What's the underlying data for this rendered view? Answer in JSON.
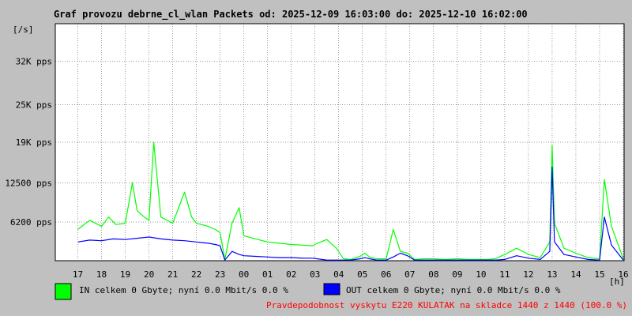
{
  "chart_data": {
    "type": "line",
    "title": "Graf provozu debrne_cl_wlan Packets od: 2025-12-09 16:03:00 do: 2025-12-10 16:02:00",
    "ylabel": "[/s]",
    "xlabel": "[h]",
    "x_start": "16:03",
    "x_end": "16:02",
    "x_ticks": [
      "17",
      "18",
      "19",
      "20",
      "21",
      "22",
      "23",
      "00",
      "01",
      "02",
      "03",
      "04",
      "05",
      "06",
      "07",
      "08",
      "09",
      "10",
      "11",
      "12",
      "13",
      "14",
      "15",
      "16"
    ],
    "y_ticks": [
      {
        "value": 6200,
        "label": "6200 pps"
      },
      {
        "value": 12500,
        "label": "12500 pps"
      },
      {
        "value": 19000,
        "label": "19K pps"
      },
      {
        "value": 25000,
        "label": "25K pps"
      },
      {
        "value": 32000,
        "label": "32K pps"
      }
    ],
    "ylim": [
      0,
      38000
    ],
    "grid": true,
    "legend_position": "bottom-left",
    "series": [
      {
        "name": "IN celkem 0 Gbyte; nyní   0.0 Mbit/s 0.0 %",
        "color": "#00ff00",
        "x": [
          17.0,
          17.5,
          18.0,
          18.3,
          18.6,
          19.0,
          19.3,
          19.5,
          19.8,
          20.0,
          20.2,
          20.5,
          21.0,
          21.5,
          21.8,
          22.0,
          22.5,
          22.8,
          23.0,
          23.2,
          23.5,
          23.8,
          24.0,
          24.5,
          25.0,
          25.5,
          26.0,
          26.5,
          26.9,
          27.1,
          27.5,
          27.9,
          28.2,
          28.5,
          28.9,
          29.1,
          29.3,
          29.6,
          29.8,
          30.0,
          30.3,
          30.6,
          30.9,
          31.2,
          31.6,
          32.0,
          32.5,
          33.0,
          33.5,
          34.0,
          34.3,
          34.4,
          34.6,
          35.0,
          35.5,
          36.0,
          36.5,
          36.9,
          37.0,
          37.1,
          37.5,
          38.0,
          38.5,
          39.0,
          39.2,
          39.5,
          40.0
        ],
        "y": [
          5000,
          6500,
          5500,
          7000,
          5800,
          6000,
          12500,
          8000,
          7000,
          6500,
          19000,
          7000,
          6000,
          11000,
          7000,
          6000,
          5500,
          5000,
          4500,
          200,
          6000,
          8500,
          4000,
          3500,
          3000,
          2800,
          2600,
          2500,
          2400,
          2800,
          3400,
          2000,
          300,
          200,
          700,
          1200,
          600,
          300,
          300,
          300,
          5000,
          1500,
          1200,
          200,
          300,
          300,
          200,
          300,
          200,
          200,
          200,
          250,
          300,
          1000,
          2000,
          1000,
          500,
          3000,
          18500,
          6000,
          2000,
          1200,
          500,
          300,
          13000,
          5500,
          300
        ]
      },
      {
        "name": "OUT celkem 0 Gbyte; nyní   0.0 Mbit/s 0.0 %",
        "color": "#0000ff",
        "x": [
          17.0,
          17.5,
          18.0,
          18.5,
          19.0,
          19.5,
          20.0,
          20.5,
          21.0,
          21.5,
          22.0,
          22.5,
          22.8,
          23.0,
          23.2,
          23.5,
          23.8,
          24.0,
          24.5,
          25.0,
          25.5,
          26.0,
          26.5,
          26.9,
          27.1,
          27.5,
          28.2,
          28.5,
          28.9,
          29.1,
          29.3,
          29.6,
          29.8,
          30.0,
          30.3,
          30.6,
          30.9,
          31.2,
          31.6,
          32.0,
          32.5,
          33.0,
          33.5,
          34.0,
          34.3,
          34.4,
          34.6,
          35.0,
          35.5,
          36.0,
          36.5,
          36.9,
          37.0,
          37.1,
          37.5,
          38.0,
          38.5,
          39.0,
          39.2,
          39.5,
          40.0
        ],
        "y": [
          3000,
          3300,
          3200,
          3500,
          3400,
          3600,
          3800,
          3500,
          3300,
          3200,
          3000,
          2800,
          2600,
          2400,
          100,
          1500,
          1000,
          800,
          700,
          600,
          500,
          500,
          400,
          400,
          300,
          100,
          100,
          100,
          300,
          500,
          300,
          100,
          100,
          100,
          600,
          1200,
          800,
          100,
          100,
          100,
          100,
          100,
          100,
          100,
          100,
          100,
          100,
          200,
          800,
          400,
          200,
          1500,
          15000,
          3000,
          1000,
          600,
          200,
          100,
          7000,
          2500,
          100
        ]
      }
    ],
    "annotation": "Pravdepodobnost vyskytu E220 KULATAK na skladce 1440 z 1440 (100.0 %)"
  }
}
